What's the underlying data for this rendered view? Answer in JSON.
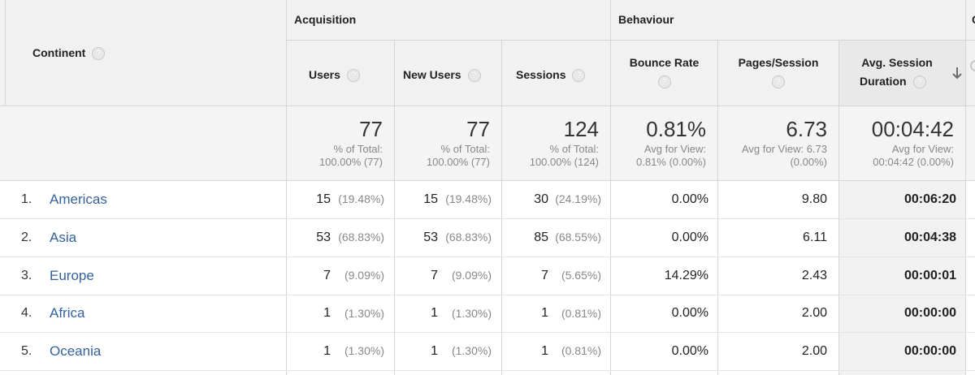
{
  "header": {
    "dimension": "Continent",
    "groups": {
      "acquisition": "Acquisition",
      "behaviour": "Behaviour",
      "partial": "C"
    },
    "columns": {
      "users": "Users",
      "new_users": "New Users",
      "sessions": "Sessions",
      "bounce_rate": "Bounce Rate",
      "pages_session": "Pages/Session",
      "avg_session_line1": "Avg. Session",
      "avg_session_line2": "Duration"
    },
    "help_glyph": "?",
    "sort_icon": "arrow-down-icon"
  },
  "totals": {
    "users": {
      "value": "77",
      "sub1": "% of Total:",
      "sub2": "100.00% (77)"
    },
    "new_users": {
      "value": "77",
      "sub1": "% of Total:",
      "sub2": "100.00% (77)"
    },
    "sessions": {
      "value": "124",
      "sub1": "% of Total:",
      "sub2": "100.00% (124)"
    },
    "bounce_rate": {
      "value": "0.81%",
      "sub1": "Avg for View:",
      "sub2": "0.81% (0.00%)"
    },
    "pages_session": {
      "value": "6.73",
      "sub1": "Avg for View: 6.73",
      "sub2": "(0.00%)"
    },
    "avg_session": {
      "value": "00:04:42",
      "sub1": "Avg for View:",
      "sub2": "00:04:42 (0.00%)"
    }
  },
  "rows": [
    {
      "rank": "1.",
      "continent": "Americas",
      "users": "15",
      "users_pct": "(19.48%)",
      "new_users": "15",
      "new_users_pct": "(19.48%)",
      "sessions": "30",
      "sessions_pct": "(24.19%)",
      "bounce_rate": "0.00%",
      "pages_session": "9.80",
      "avg_session": "00:06:20"
    },
    {
      "rank": "2.",
      "continent": "Asia",
      "users": "53",
      "users_pct": "(68.83%)",
      "new_users": "53",
      "new_users_pct": "(68.83%)",
      "sessions": "85",
      "sessions_pct": "(68.55%)",
      "bounce_rate": "0.00%",
      "pages_session": "6.11",
      "avg_session": "00:04:38"
    },
    {
      "rank": "3.",
      "continent": "Europe",
      "users": "7",
      "users_pct": "(9.09%)",
      "new_users": "7",
      "new_users_pct": "(9.09%)",
      "sessions": "7",
      "sessions_pct": "(5.65%)",
      "bounce_rate": "14.29%",
      "pages_session": "2.43",
      "avg_session": "00:00:01"
    },
    {
      "rank": "4.",
      "continent": "Africa",
      "users": "1",
      "users_pct": "(1.30%)",
      "new_users": "1",
      "new_users_pct": "(1.30%)",
      "sessions": "1",
      "sessions_pct": "(0.81%)",
      "bounce_rate": "0.00%",
      "pages_session": "2.00",
      "avg_session": "00:00:00"
    },
    {
      "rank": "5.",
      "continent": "Oceania",
      "users": "1",
      "users_pct": "(1.30%)",
      "new_users": "1",
      "new_users_pct": "(1.30%)",
      "sessions": "1",
      "sessions_pct": "(0.81%)",
      "bounce_rate": "0.00%",
      "pages_session": "2.00",
      "avg_session": "00:00:00"
    }
  ]
}
